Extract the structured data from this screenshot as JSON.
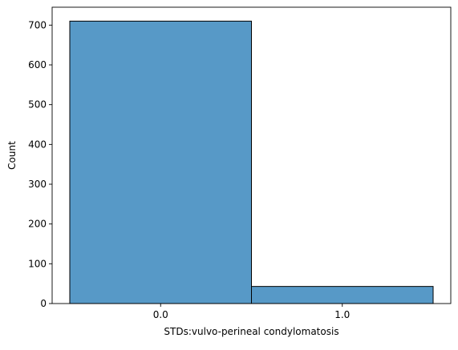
{
  "chart_data": {
    "type": "bar",
    "title": "",
    "xlabel": "STDs:vulvo-perineal condylomatosis",
    "ylabel": "Count",
    "categories": [
      "0.0",
      "1.0"
    ],
    "values": [
      710,
      43
    ],
    "ylim": [
      0,
      745
    ],
    "y_ticks": [
      0,
      100,
      200,
      300,
      400,
      500,
      600,
      700
    ],
    "y_tick_labels": [
      "0",
      "100",
      "200",
      "300",
      "400",
      "500",
      "600",
      "700"
    ],
    "grid": false,
    "legend": "none",
    "bar_color": "#5799c7",
    "bar_edge_color": "#000000"
  }
}
